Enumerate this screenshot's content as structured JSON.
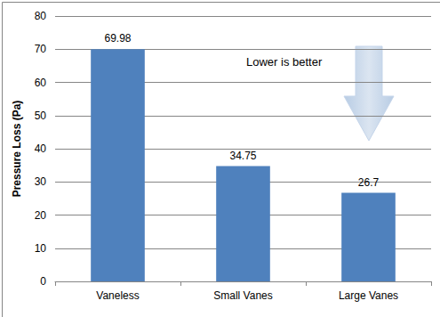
{
  "chart_data": {
    "type": "bar",
    "y_label": "Pressure Loss (Pa)",
    "categories": [
      "Vaneless",
      "Small Vanes",
      "Large Vanes"
    ],
    "values": [
      69.98,
      34.75,
      26.7
    ],
    "color": "#4f81bd",
    "ylim": [
      0,
      80
    ],
    "yticks": [
      0,
      10,
      20,
      30,
      40,
      50,
      60,
      70,
      80
    ],
    "grid": true,
    "data_labels": true,
    "annotations": [
      "Lower is better"
    ]
  }
}
